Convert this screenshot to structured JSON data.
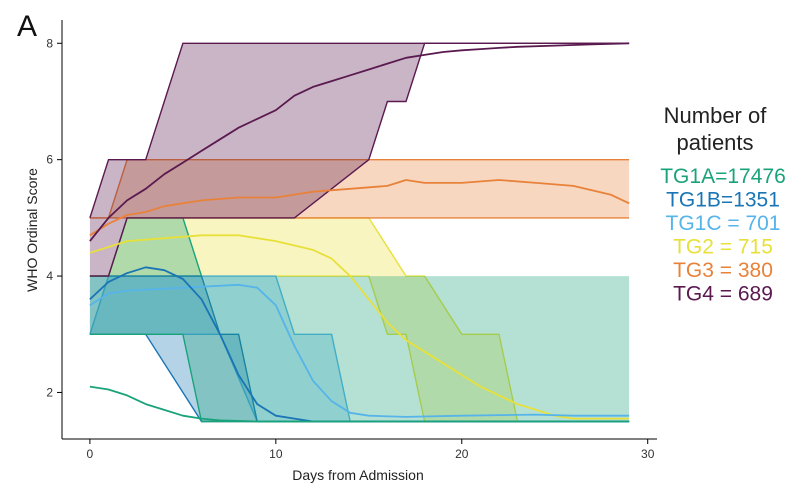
{
  "chart_data": {
    "type": "area",
    "panel_label": "A",
    "xlabel": "Days from Admission",
    "ylabel": "WHO Ordinal Score",
    "xlim": [
      -1.5,
      30.5
    ],
    "ylim": [
      1.2,
      8.4
    ],
    "x_ticks": [
      0,
      10,
      20,
      30
    ],
    "y_ticks": [
      2,
      4,
      6,
      8
    ],
    "grid": false,
    "legend_title": [
      "Number of",
      "patients"
    ],
    "legend_position": "right",
    "series": [
      {
        "name": "TG1A=17476",
        "color": "#1aa37a",
        "band_lower": [
          [
            0,
            3
          ],
          [
            1,
            3
          ],
          [
            2,
            3
          ],
          [
            3,
            3
          ],
          [
            5,
            3
          ],
          [
            6,
            1.5
          ],
          [
            29,
            1.5
          ]
        ],
        "band_upper": [
          [
            0,
            4
          ],
          [
            1,
            4
          ],
          [
            2,
            5
          ],
          [
            3,
            5
          ],
          [
            5,
            5
          ],
          [
            6,
            4
          ],
          [
            29,
            4
          ]
        ],
        "band_upper_visible_until": 6,
        "mean": [
          [
            0,
            2.1
          ],
          [
            1,
            2.05
          ],
          [
            2,
            1.95
          ],
          [
            3,
            1.8
          ],
          [
            4,
            1.7
          ],
          [
            5,
            1.6
          ],
          [
            6,
            1.55
          ],
          [
            7,
            1.52
          ],
          [
            9,
            1.5
          ],
          [
            29,
            1.5
          ]
        ]
      },
      {
        "name": "TG1B=1351",
        "color": "#1a75b5",
        "band_lower": [
          [
            0,
            3
          ],
          [
            2,
            3
          ],
          [
            3,
            3
          ],
          [
            6,
            1.5
          ],
          [
            29,
            1.5
          ]
        ],
        "band_upper": [
          [
            0,
            4
          ],
          [
            2,
            4
          ],
          [
            3,
            4
          ],
          [
            4,
            4
          ],
          [
            6,
            4
          ],
          [
            7,
            3
          ],
          [
            8,
            3
          ],
          [
            9,
            1.5
          ],
          [
            29,
            1.5
          ]
        ],
        "mean": [
          [
            0,
            3.6
          ],
          [
            1,
            3.9
          ],
          [
            2,
            4.05
          ],
          [
            3,
            4.15
          ],
          [
            4,
            4.1
          ],
          [
            5,
            3.95
          ],
          [
            6,
            3.6
          ],
          [
            7,
            3.0
          ],
          [
            8,
            2.3
          ],
          [
            9,
            1.8
          ],
          [
            10,
            1.6
          ],
          [
            11,
            1.55
          ],
          [
            12,
            1.5
          ],
          [
            29,
            1.5
          ]
        ]
      },
      {
        "name": "TG1C = 701",
        "color": "#56b4e9",
        "band_lower": [
          [
            0,
            3
          ],
          [
            1,
            3
          ],
          [
            2,
            3
          ],
          [
            5,
            3
          ],
          [
            7,
            3
          ],
          [
            9,
            1.5
          ],
          [
            29,
            1.5
          ]
        ],
        "band_upper": [
          [
            0,
            3
          ],
          [
            1,
            4
          ],
          [
            2,
            4
          ],
          [
            9,
            4
          ],
          [
            10,
            4
          ],
          [
            11,
            3
          ],
          [
            13,
            3
          ],
          [
            14,
            1.5
          ],
          [
            29,
            1.5
          ]
        ],
        "mean": [
          [
            0,
            3.5
          ],
          [
            1,
            3.7
          ],
          [
            2,
            3.75
          ],
          [
            5,
            3.8
          ],
          [
            8,
            3.85
          ],
          [
            9,
            3.8
          ],
          [
            10,
            3.5
          ],
          [
            11,
            2.8
          ],
          [
            12,
            2.2
          ],
          [
            13,
            1.85
          ],
          [
            14,
            1.65
          ],
          [
            15,
            1.6
          ],
          [
            17,
            1.58
          ],
          [
            20,
            1.6
          ],
          [
            24,
            1.62
          ],
          [
            26,
            1.6
          ],
          [
            29,
            1.6
          ]
        ]
      },
      {
        "name": "TG2 = 715",
        "color": "#e8e03a",
        "band_lower": [
          [
            0,
            4
          ],
          [
            1,
            4
          ],
          [
            2,
            4
          ],
          [
            5,
            4
          ],
          [
            13,
            4
          ],
          [
            15,
            4
          ],
          [
            16,
            3
          ],
          [
            17,
            3
          ],
          [
            18,
            1.5
          ],
          [
            29,
            1.5
          ]
        ],
        "band_upper": [
          [
            0,
            4
          ],
          [
            1,
            4
          ],
          [
            2,
            5
          ],
          [
            8,
            5
          ],
          [
            15,
            5
          ],
          [
            17,
            4
          ],
          [
            18,
            4
          ],
          [
            20,
            3
          ],
          [
            22,
            3
          ],
          [
            23,
            1.5
          ],
          [
            29,
            1.5
          ]
        ],
        "mean": [
          [
            0,
            4.4
          ],
          [
            1,
            4.5
          ],
          [
            2,
            4.6
          ],
          [
            4,
            4.65
          ],
          [
            6,
            4.7
          ],
          [
            8,
            4.7
          ],
          [
            10,
            4.6
          ],
          [
            12,
            4.45
          ],
          [
            13,
            4.3
          ],
          [
            14,
            4.0
          ],
          [
            15,
            3.6
          ],
          [
            16,
            3.2
          ],
          [
            17,
            2.9
          ],
          [
            18,
            2.7
          ],
          [
            19,
            2.5
          ],
          [
            20,
            2.3
          ],
          [
            21,
            2.1
          ],
          [
            22,
            1.95
          ],
          [
            23,
            1.8
          ],
          [
            24,
            1.7
          ],
          [
            25,
            1.6
          ],
          [
            26,
            1.55
          ],
          [
            29,
            1.55
          ]
        ]
      },
      {
        "name": "TG3 = 380",
        "color": "#e8823a",
        "band_lower": [
          [
            0,
            5
          ],
          [
            29,
            5
          ]
        ],
        "band_upper": [
          [
            0,
            5
          ],
          [
            1,
            5
          ],
          [
            2,
            6
          ],
          [
            29,
            6
          ]
        ],
        "mean": [
          [
            0,
            4.7
          ],
          [
            1,
            4.9
          ],
          [
            2,
            5.05
          ],
          [
            3,
            5.1
          ],
          [
            4,
            5.2
          ],
          [
            5,
            5.25
          ],
          [
            6,
            5.3
          ],
          [
            8,
            5.35
          ],
          [
            10,
            5.35
          ],
          [
            12,
            5.45
          ],
          [
            14,
            5.5
          ],
          [
            16,
            5.55
          ],
          [
            17,
            5.65
          ],
          [
            18,
            5.6
          ],
          [
            20,
            5.6
          ],
          [
            22,
            5.65
          ],
          [
            24,
            5.6
          ],
          [
            26,
            5.55
          ],
          [
            28,
            5.4
          ],
          [
            29,
            5.25
          ]
        ]
      },
      {
        "name": "TG4 = 689",
        "color": "#5a1a4f",
        "band_lower": [
          [
            0,
            4
          ],
          [
            1,
            4
          ],
          [
            2,
            5
          ],
          [
            3,
            5
          ],
          [
            5,
            5
          ],
          [
            11,
            5
          ],
          [
            15,
            6
          ],
          [
            16,
            7
          ],
          [
            17,
            7
          ],
          [
            18,
            8
          ],
          [
            29,
            8
          ]
        ],
        "band_upper": [
          [
            0,
            5
          ],
          [
            1,
            6
          ],
          [
            2,
            6
          ],
          [
            3,
            6
          ],
          [
            4,
            7
          ],
          [
            5,
            8
          ],
          [
            29,
            8
          ]
        ],
        "mean": [
          [
            0,
            4.6
          ],
          [
            1,
            5.0
          ],
          [
            2,
            5.3
          ],
          [
            3,
            5.5
          ],
          [
            4,
            5.75
          ],
          [
            5,
            5.95
          ],
          [
            6,
            6.15
          ],
          [
            7,
            6.35
          ],
          [
            8,
            6.55
          ],
          [
            9,
            6.7
          ],
          [
            10,
            6.85
          ],
          [
            11,
            7.1
          ],
          [
            12,
            7.25
          ],
          [
            13,
            7.35
          ],
          [
            14,
            7.45
          ],
          [
            15,
            7.55
          ],
          [
            16,
            7.65
          ],
          [
            17,
            7.75
          ],
          [
            18,
            7.8
          ],
          [
            19,
            7.85
          ],
          [
            20,
            7.88
          ],
          [
            21,
            7.9
          ],
          [
            22,
            7.92
          ],
          [
            23,
            7.94
          ],
          [
            25,
            7.96
          ],
          [
            27,
            7.98
          ],
          [
            29,
            8.0
          ]
        ]
      }
    ]
  }
}
